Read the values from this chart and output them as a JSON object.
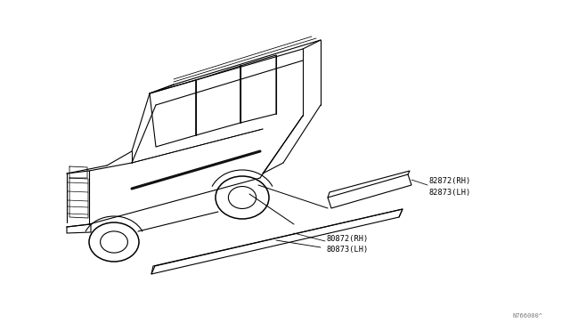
{
  "bg_color": "#ffffff",
  "line_color": "#000000",
  "lw": 0.8,
  "fig_width": 6.4,
  "fig_height": 3.72,
  "diagram_code": "N766000^",
  "label1_line1": "82872(RH)",
  "label1_line2": "82873(LH)",
  "label2_line1": "80872(RH)",
  "label2_line2": "80873(LH)",
  "font_size": 6.2,
  "font_family": "monospace"
}
